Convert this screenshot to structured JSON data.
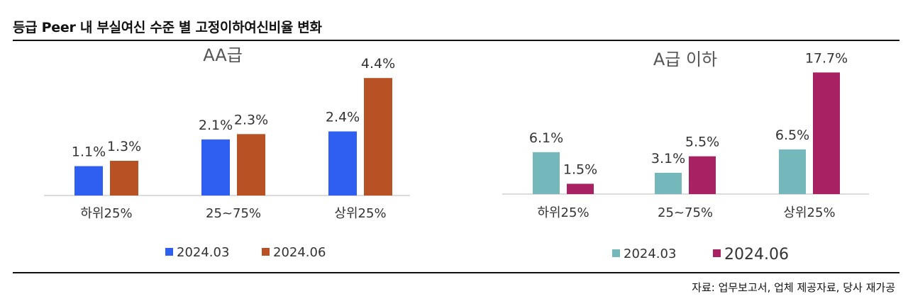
{
  "header": {
    "title": "등급 Peer 내 부실여신 수준 별 고정이하여신비율 변화"
  },
  "footer": {
    "source": "자료: 업무보고서, 업체 제공자료, 당사 재가공"
  },
  "chart_data": [
    {
      "type": "bar",
      "title": "AA급",
      "categories": [
        "하위25%",
        "25~75%",
        "상위25%"
      ],
      "series": [
        {
          "name": "2024.03",
          "values": [
            1.1,
            2.1,
            2.4
          ],
          "labels": [
            "1.1%",
            "2.1%",
            "2.4%"
          ],
          "color": "#2f5ff0"
        },
        {
          "name": "2024.06",
          "values": [
            1.3,
            2.3,
            4.4
          ],
          "labels": [
            "1.3%",
            "2.3%",
            "4.4%"
          ],
          "color": "#b85224"
        }
      ],
      "ylim": [
        0,
        5.2
      ],
      "grid": false,
      "legend": "bottom"
    },
    {
      "type": "bar",
      "title": "A급 이하",
      "categories": [
        "하위25%",
        "25~75%",
        "상위25%"
      ],
      "series": [
        {
          "name": "2024.03",
          "values": [
            6.1,
            3.1,
            6.5
          ],
          "labels": [
            "6.1%",
            "3.1%",
            "6.5%"
          ],
          "color": "#74b8bc"
        },
        {
          "name": "2024.06",
          "values": [
            1.5,
            5.5,
            17.7
          ],
          "labels": [
            "1.5%",
            "5.5%",
            "17.7%"
          ],
          "color": "#a82162"
        }
      ],
      "ylim": [
        0,
        20
      ],
      "grid": false,
      "legend": "bottom"
    }
  ]
}
